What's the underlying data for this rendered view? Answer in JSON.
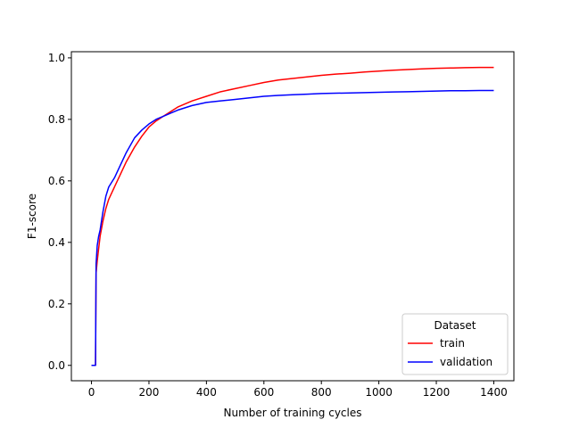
{
  "chart_data": {
    "type": "line",
    "title": "",
    "xlabel": "Number of training cycles",
    "ylabel": "F1-score",
    "xlim": [
      -70,
      1470
    ],
    "ylim": [
      -0.05,
      1.02
    ],
    "xticks": [
      0,
      200,
      400,
      600,
      800,
      1000,
      1200,
      1400
    ],
    "yticks": [
      0.0,
      0.2,
      0.4,
      0.6,
      0.8,
      1.0
    ],
    "xtick_labels": [
      "0",
      "200",
      "400",
      "600",
      "800",
      "1000",
      "1200",
      "1400"
    ],
    "ytick_labels": [
      "0.0",
      "0.2",
      "0.4",
      "0.6",
      "0.8",
      "1.0"
    ],
    "grid": false,
    "legend": {
      "title": "Dataset",
      "position": "lower-right"
    },
    "series": [
      {
        "name": "train",
        "color": "#ff0000",
        "x": [
          0,
          5,
          10,
          14,
          16,
          20,
          25,
          30,
          40,
          50,
          60,
          80,
          100,
          120,
          150,
          175,
          200,
          225,
          250,
          275,
          300,
          350,
          400,
          450,
          500,
          550,
          600,
          650,
          700,
          750,
          800,
          850,
          900,
          950,
          1000,
          1050,
          1100,
          1150,
          1200,
          1250,
          1300,
          1350,
          1400
        ],
        "y": [
          0.0,
          0.0,
          0.0,
          0.0,
          0.3,
          0.34,
          0.38,
          0.42,
          0.47,
          0.51,
          0.54,
          0.58,
          0.62,
          0.66,
          0.71,
          0.745,
          0.775,
          0.795,
          0.81,
          0.825,
          0.84,
          0.86,
          0.875,
          0.89,
          0.9,
          0.91,
          0.92,
          0.928,
          0.933,
          0.938,
          0.943,
          0.947,
          0.95,
          0.954,
          0.957,
          0.96,
          0.962,
          0.964,
          0.966,
          0.967,
          0.968,
          0.969,
          0.969
        ]
      },
      {
        "name": "validation",
        "color": "#0000ff",
        "x": [
          0,
          5,
          10,
          14,
          16,
          20,
          25,
          30,
          40,
          50,
          60,
          80,
          100,
          120,
          150,
          175,
          200,
          225,
          250,
          275,
          300,
          350,
          400,
          450,
          500,
          550,
          600,
          650,
          700,
          750,
          800,
          850,
          900,
          950,
          1000,
          1050,
          1100,
          1150,
          1200,
          1250,
          1300,
          1350,
          1400
        ],
        "y": [
          0.0,
          0.0,
          0.0,
          0.0,
          0.33,
          0.39,
          0.42,
          0.44,
          0.5,
          0.55,
          0.58,
          0.61,
          0.65,
          0.69,
          0.74,
          0.765,
          0.785,
          0.8,
          0.81,
          0.82,
          0.83,
          0.845,
          0.855,
          0.86,
          0.865,
          0.87,
          0.875,
          0.878,
          0.88,
          0.882,
          0.884,
          0.885,
          0.886,
          0.887,
          0.888,
          0.889,
          0.89,
          0.891,
          0.892,
          0.893,
          0.893,
          0.894,
          0.894
        ]
      }
    ]
  }
}
